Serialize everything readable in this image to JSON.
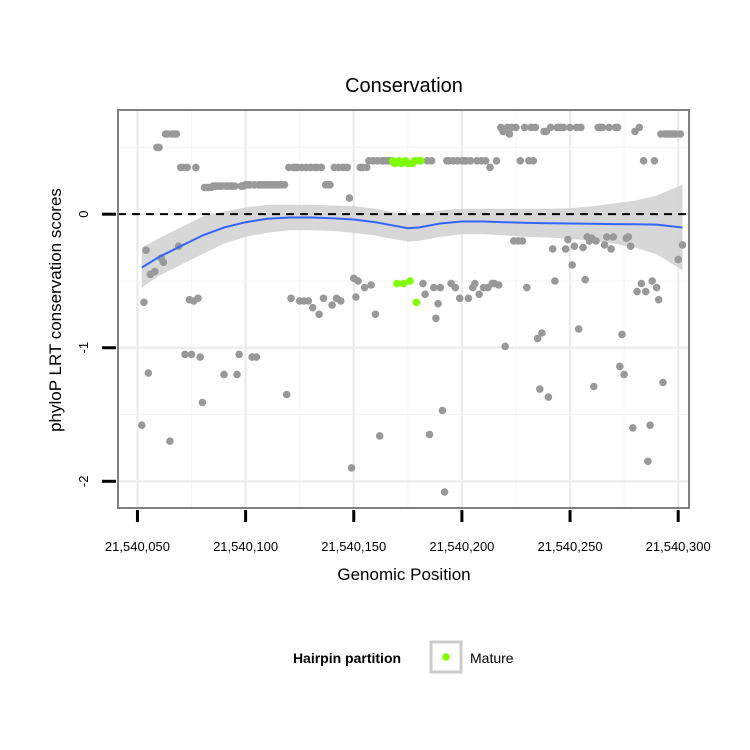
{
  "chart_data": {
    "type": "scatter",
    "title": "Conservation",
    "xlabel": "Genomic Position",
    "ylabel": "phyloP LRT conservation scores",
    "xlim": [
      21540041,
      21540305
    ],
    "ylim": [
      -2.2,
      0.78
    ],
    "x_ticks": [
      21540050,
      21540100,
      21540150,
      21540200,
      21540250,
      21540300
    ],
    "x_tick_labels": [
      "21,540,050",
      "21,540,100",
      "21,540,150",
      "21,540,200",
      "21,540,250",
      "21,540,300"
    ],
    "y_ticks": [
      -2,
      -1,
      0
    ],
    "y_tick_labels": [
      "-2",
      "-1",
      "0"
    ],
    "grid": true,
    "reference_line": {
      "y": 0,
      "style": "dashed"
    },
    "colors": {
      "background_points": "#999999",
      "mature": "#7fff00",
      "smooth": "#3366ff",
      "ribbon": "#d3d3d3",
      "grid": "#ececec",
      "panel_border": "#7f7f7f"
    },
    "legend": {
      "title": "Hairpin partition",
      "position": "bottom",
      "entries": [
        {
          "label": "Mature",
          "color": "#7fff00"
        }
      ]
    },
    "series": [
      {
        "points": [
          [
            21540052,
            -1.58
          ],
          [
            21540053,
            -0.66
          ],
          [
            21540054,
            -0.27
          ],
          [
            21540055,
            -1.19
          ],
          [
            21540056,
            -0.45
          ],
          [
            21540058,
            -0.43
          ],
          [
            21540059,
            0.5
          ],
          [
            21540060,
            0.5
          ],
          [
            21540061,
            -0.33
          ],
          [
            21540062,
            -0.36
          ],
          [
            21540063,
            0.6
          ],
          [
            21540064,
            0.6
          ],
          [
            21540065,
            -1.7
          ],
          [
            21540066,
            0.6
          ],
          [
            21540067,
            0.6
          ],
          [
            21540068,
            0.6
          ],
          [
            21540069,
            -0.24
          ],
          [
            21540070,
            0.35
          ],
          [
            21540071,
            0.35
          ],
          [
            21540072,
            -1.05
          ],
          [
            21540073,
            0.35
          ],
          [
            21540074,
            -0.64
          ],
          [
            21540075,
            -1.05
          ],
          [
            21540076,
            -0.65
          ],
          [
            21540077,
            0.35
          ],
          [
            21540078,
            -0.63
          ],
          [
            21540079,
            -1.07
          ],
          [
            21540080,
            -1.41
          ],
          [
            21540081,
            0.2
          ],
          [
            21540082,
            0.2
          ],
          [
            21540083,
            0.2
          ],
          [
            21540084,
            0.2
          ],
          [
            21540085,
            0.21
          ],
          [
            21540086,
            0.21
          ],
          [
            21540087,
            0.21
          ],
          [
            21540088,
            0.21
          ],
          [
            21540089,
            0.21
          ],
          [
            21540090,
            -1.2
          ],
          [
            21540091,
            0.21
          ],
          [
            21540092,
            0.21
          ],
          [
            21540093,
            0.21
          ],
          [
            21540094,
            0.21
          ],
          [
            21540095,
            0.21
          ],
          [
            21540096,
            -1.2
          ],
          [
            21540097,
            -1.05
          ],
          [
            21540098,
            0.21
          ],
          [
            21540099,
            0.21
          ],
          [
            21540100,
            0.22
          ],
          [
            21540101,
            0.22
          ],
          [
            21540102,
            0.22
          ],
          [
            21540103,
            -1.07
          ],
          [
            21540104,
            0.22
          ],
          [
            21540105,
            -1.07
          ],
          [
            21540106,
            0.22
          ],
          [
            21540107,
            0.22
          ],
          [
            21540108,
            0.22
          ],
          [
            21540109,
            0.22
          ],
          [
            21540110,
            0.22
          ],
          [
            21540111,
            0.22
          ],
          [
            21540112,
            0.22
          ],
          [
            21540113,
            0.22
          ],
          [
            21540114,
            0.22
          ],
          [
            21540115,
            0.22
          ],
          [
            21540116,
            0.22
          ],
          [
            21540117,
            0.22
          ],
          [
            21540118,
            0.22
          ],
          [
            21540119,
            -1.35
          ],
          [
            21540120,
            0.35
          ],
          [
            21540121,
            -0.63
          ],
          [
            21540122,
            0.35
          ],
          [
            21540123,
            0.35
          ],
          [
            21540124,
            0.35
          ],
          [
            21540125,
            -0.65
          ],
          [
            21540126,
            0.35
          ],
          [
            21540127,
            -0.65
          ],
          [
            21540128,
            0.35
          ],
          [
            21540129,
            -0.65
          ],
          [
            21540130,
            0.35
          ],
          [
            21540131,
            -0.7
          ],
          [
            21540132,
            0.35
          ],
          [
            21540133,
            0.35
          ],
          [
            21540134,
            -0.75
          ],
          [
            21540135,
            0.35
          ],
          [
            21540136,
            -0.63
          ],
          [
            21540137,
            0.22
          ],
          [
            21540138,
            0.22
          ],
          [
            21540139,
            0.22
          ],
          [
            21540140,
            -0.68
          ],
          [
            21540141,
            0.35
          ],
          [
            21540142,
            -0.63
          ],
          [
            21540143,
            0.35
          ],
          [
            21540144,
            -0.65
          ],
          [
            21540145,
            0.35
          ],
          [
            21540146,
            0.35
          ],
          [
            21540147,
            0.35
          ],
          [
            21540148,
            0.12
          ],
          [
            21540149,
            -1.9
          ],
          [
            21540150,
            -0.48
          ],
          [
            21540151,
            -0.62
          ],
          [
            21540152,
            -0.5
          ],
          [
            21540153,
            0.35
          ],
          [
            21540154,
            0.35
          ],
          [
            21540155,
            -0.55
          ],
          [
            21540156,
            0.35
          ],
          [
            21540157,
            0.4
          ],
          [
            21540158,
            -0.53
          ],
          [
            21540159,
            0.4
          ],
          [
            21540160,
            -0.75
          ],
          [
            21540161,
            0.4
          ],
          [
            21540162,
            -1.66
          ],
          [
            21540163,
            0.4
          ],
          [
            21540164,
            0.4
          ],
          [
            21540165,
            0.4
          ],
          [
            21540166,
            0.4
          ],
          [
            21540167,
            0.4
          ],
          [
            21540182,
            -0.52
          ],
          [
            21540183,
            -0.6
          ],
          [
            21540184,
            0.4
          ],
          [
            21540185,
            -1.65
          ],
          [
            21540186,
            0.4
          ],
          [
            21540187,
            -0.55
          ],
          [
            21540188,
            -0.78
          ],
          [
            21540189,
            -0.67
          ],
          [
            21540190,
            -0.55
          ],
          [
            21540191,
            -1.47
          ],
          [
            21540192,
            -2.08
          ],
          [
            21540193,
            0.4
          ],
          [
            21540194,
            0.4
          ],
          [
            21540195,
            -0.52
          ],
          [
            21540196,
            0.4
          ],
          [
            21540197,
            -0.55
          ],
          [
            21540198,
            0.4
          ],
          [
            21540199,
            -0.63
          ],
          [
            21540200,
            0.4
          ],
          [
            21540201,
            0.4
          ],
          [
            21540202,
            0.4
          ],
          [
            21540203,
            -0.63
          ],
          [
            21540204,
            0.4
          ],
          [
            21540205,
            -0.55
          ],
          [
            21540206,
            -0.52
          ],
          [
            21540207,
            0.4
          ],
          [
            21540208,
            -0.6
          ],
          [
            21540209,
            0.4
          ],
          [
            21540210,
            -0.55
          ],
          [
            21540211,
            0.4
          ],
          [
            21540212,
            -0.55
          ],
          [
            21540213,
            0.35
          ],
          [
            21540214,
            -0.52
          ],
          [
            21540215,
            -0.52
          ],
          [
            21540216,
            0.4
          ],
          [
            21540217,
            -0.53
          ],
          [
            21540218,
            0.65
          ],
          [
            21540219,
            0.62
          ],
          [
            21540220,
            -0.99
          ],
          [
            21540221,
            0.65
          ],
          [
            21540222,
            0.6
          ],
          [
            21540223,
            0.65
          ],
          [
            21540224,
            -0.2
          ],
          [
            21540225,
            0.65
          ],
          [
            21540226,
            -0.2
          ],
          [
            21540227,
            0.4
          ],
          [
            21540228,
            -0.2
          ],
          [
            21540229,
            0.65
          ],
          [
            21540230,
            -0.55
          ],
          [
            21540231,
            0.4
          ],
          [
            21540232,
            0.65
          ],
          [
            21540233,
            0.4
          ],
          [
            21540234,
            0.65
          ],
          [
            21540235,
            -0.93
          ],
          [
            21540236,
            -1.31
          ],
          [
            21540237,
            -0.89
          ],
          [
            21540238,
            0.62
          ],
          [
            21540239,
            0.62
          ],
          [
            21540240,
            -1.37
          ],
          [
            21540241,
            0.65
          ],
          [
            21540242,
            -0.26
          ],
          [
            21540243,
            -0.5
          ],
          [
            21540244,
            0.65
          ],
          [
            21540245,
            0.65
          ],
          [
            21540246,
            0.65
          ],
          [
            21540247,
            0.65
          ],
          [
            21540248,
            -0.26
          ],
          [
            21540249,
            -0.19
          ],
          [
            21540250,
            0.65
          ],
          [
            21540251,
            -0.38
          ],
          [
            21540252,
            -0.24
          ],
          [
            21540253,
            0.65
          ],
          [
            21540254,
            -0.86
          ],
          [
            21540255,
            0.65
          ],
          [
            21540256,
            -0.25
          ],
          [
            21540257,
            -0.49
          ],
          [
            21540258,
            -0.17
          ],
          [
            21540259,
            -0.2
          ],
          [
            21540260,
            -0.18
          ],
          [
            21540261,
            -1.29
          ],
          [
            21540262,
            -0.2
          ],
          [
            21540263,
            0.65
          ],
          [
            21540264,
            0.65
          ],
          [
            21540265,
            0.65
          ],
          [
            21540266,
            -0.23
          ],
          [
            21540267,
            -0.17
          ],
          [
            21540268,
            0.65
          ],
          [
            21540269,
            -0.26
          ],
          [
            21540270,
            -0.17
          ],
          [
            21540271,
            0.65
          ],
          [
            21540272,
            0.65
          ],
          [
            21540273,
            -1.14
          ],
          [
            21540274,
            -0.9
          ],
          [
            21540275,
            -1.2
          ],
          [
            21540276,
            -0.18
          ],
          [
            21540277,
            -0.17
          ],
          [
            21540278,
            -0.24
          ],
          [
            21540279,
            -1.6
          ],
          [
            21540280,
            0.62
          ],
          [
            21540281,
            -0.58
          ],
          [
            21540282,
            0.65
          ],
          [
            21540283,
            -0.52
          ],
          [
            21540284,
            0.4
          ],
          [
            21540285,
            -0.58
          ],
          [
            21540286,
            -1.85
          ],
          [
            21540287,
            -1.58
          ],
          [
            21540288,
            -0.5
          ],
          [
            21540289,
            0.4
          ],
          [
            21540290,
            -0.55
          ],
          [
            21540291,
            -0.64
          ],
          [
            21540292,
            0.6
          ],
          [
            21540293,
            -1.26
          ],
          [
            21540294,
            0.6
          ],
          [
            21540295,
            0.6
          ],
          [
            21540296,
            0.6
          ],
          [
            21540297,
            0.6
          ],
          [
            21540298,
            0.6
          ],
          [
            21540299,
            0.6
          ],
          [
            21540300,
            -0.34
          ],
          [
            21540301,
            0.6
          ],
          [
            21540302,
            -0.23
          ]
        ]
      },
      {
        "name": "Mature",
        "points": [
          [
            21540168,
            0.4
          ],
          [
            21540169,
            0.38
          ],
          [
            21540170,
            -0.52
          ],
          [
            21540171,
            0.4
          ],
          [
            21540172,
            0.38
          ],
          [
            21540173,
            -0.52
          ],
          [
            21540174,
            0.4
          ],
          [
            21540175,
            0.38
          ],
          [
            21540176,
            -0.5
          ],
          [
            21540177,
            0.38
          ],
          [
            21540178,
            0.4
          ],
          [
            21540179,
            -0.66
          ],
          [
            21540180,
            0.4
          ],
          [
            21540181,
            0.4
          ]
        ]
      }
    ],
    "smooth": {
      "x": [
        21540052,
        21540060,
        21540070,
        21540080,
        21540090,
        21540100,
        21540110,
        21540120,
        21540130,
        21540140,
        21540150,
        21540160,
        21540170,
        21540175,
        21540180,
        21540190,
        21540200,
        21540210,
        21540220,
        21540230,
        21540240,
        21540250,
        21540260,
        21540270,
        21540280,
        21540290,
        21540302
      ],
      "y": [
        -0.4,
        -0.32,
        -0.24,
        -0.16,
        -0.1,
        -0.06,
        -0.035,
        -0.025,
        -0.025,
        -0.03,
        -0.04,
        -0.06,
        -0.09,
        -0.105,
        -0.1,
        -0.07,
        -0.055,
        -0.055,
        -0.06,
        -0.065,
        -0.068,
        -0.07,
        -0.072,
        -0.074,
        -0.076,
        -0.078,
        -0.1
      ],
      "lo": [
        -0.55,
        -0.46,
        -0.38,
        -0.3,
        -0.22,
        -0.17,
        -0.14,
        -0.12,
        -0.12,
        -0.125,
        -0.14,
        -0.16,
        -0.19,
        -0.205,
        -0.2,
        -0.17,
        -0.15,
        -0.15,
        -0.16,
        -0.17,
        -0.175,
        -0.185,
        -0.2,
        -0.22,
        -0.25,
        -0.3,
        -0.42
      ],
      "hi": [
        -0.25,
        -0.18,
        -0.1,
        -0.02,
        0.02,
        0.05,
        0.07,
        0.07,
        0.07,
        0.065,
        0.06,
        0.04,
        0.01,
        -0.005,
        0.0,
        0.03,
        0.04,
        0.04,
        0.04,
        0.04,
        0.04,
        0.045,
        0.06,
        0.08,
        0.1,
        0.14,
        0.22
      ]
    }
  }
}
